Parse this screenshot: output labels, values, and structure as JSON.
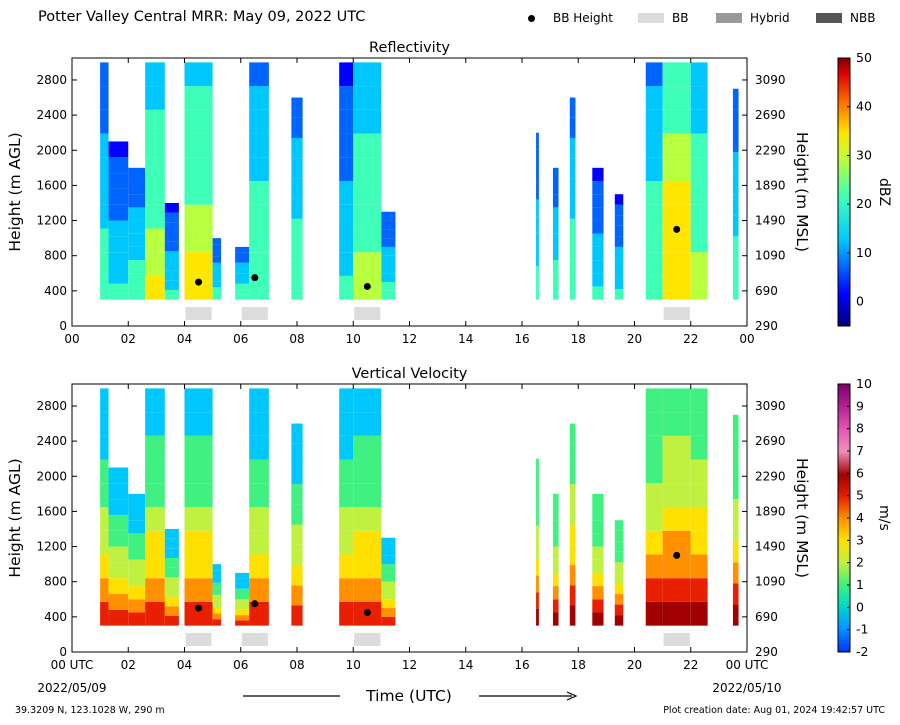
{
  "header": {
    "title": "Potter Valley Central MRR:  May 09, 2022 UTC",
    "legend": [
      {
        "label": "BB Height",
        "kind": "marker",
        "color": "#000000"
      },
      {
        "label": "BB",
        "kind": "swatch",
        "color": "#dcdcdc"
      },
      {
        "label": "Hybrid",
        "kind": "swatch",
        "color": "#999999"
      },
      {
        "label": "NBB",
        "kind": "swatch",
        "color": "#555555"
      }
    ]
  },
  "footer": {
    "location": "39.3209 N, 123.1028 W, 290 m",
    "created": "Plot creation date: Aug 01, 2024 19:42:57 UTC"
  },
  "chart_data": [
    {
      "type": "heatmap",
      "title": "Reflectivity",
      "ylabel": "Height (m AGL)",
      "ylabel_right": "Height (m MSL)",
      "xlim": [
        0,
        24
      ],
      "ylim": [
        0,
        3050
      ],
      "x_ticks": [
        "00",
        "02",
        "04",
        "06",
        "08",
        "10",
        "12",
        "14",
        "16",
        "18",
        "20",
        "22",
        "00"
      ],
      "y_ticks": [
        0,
        400,
        800,
        1200,
        1600,
        2000,
        2400,
        2800
      ],
      "y_ticks_right": [
        290,
        690,
        1090,
        1490,
        1890,
        2290,
        2690,
        3090
      ],
      "colorbar": {
        "label": "dBZ",
        "min": -5,
        "max": 50,
        "ticks": [
          0,
          10,
          20,
          30,
          40,
          50
        ]
      },
      "bb_height": [
        {
          "time": 4.5,
          "height": 500
        },
        {
          "time": 6.5,
          "height": 550
        },
        {
          "time": 10.5,
          "height": 450
        },
        {
          "time": 21.5,
          "height": 1100
        }
      ],
      "bb_class": [
        {
          "start": 4.0,
          "end": 5.0,
          "class": "BB"
        },
        {
          "start": 6.0,
          "end": 7.0,
          "class": "BB"
        },
        {
          "start": 10.0,
          "end": 11.0,
          "class": "BB"
        },
        {
          "start": 21.0,
          "end": 22.0,
          "class": "BB"
        }
      ],
      "echo_columns": [
        {
          "t0": 1.0,
          "t1": 1.3,
          "top": 3000,
          "level": 0.25
        },
        {
          "t0": 1.3,
          "t1": 2.0,
          "top": 2100,
          "level": 0.15
        },
        {
          "t0": 2.0,
          "t1": 2.6,
          "top": 1800,
          "level": 0.25
        },
        {
          "t0": 2.6,
          "t1": 3.3,
          "top": 3000,
          "level": 0.5
        },
        {
          "t0": 3.3,
          "t1": 3.8,
          "top": 1400,
          "level": 0.15
        },
        {
          "t0": 4.0,
          "t1": 5.0,
          "top": 3000,
          "level": 0.55
        },
        {
          "t0": 5.0,
          "t1": 5.3,
          "top": 1000,
          "level": 0.2
        },
        {
          "t0": 5.8,
          "t1": 6.3,
          "top": 900,
          "level": 0.25
        },
        {
          "t0": 6.3,
          "t1": 7.0,
          "top": 3000,
          "level": 0.35
        },
        {
          "t0": 7.8,
          "t1": 8.2,
          "top": 2600,
          "level": 0.3
        },
        {
          "t0": 9.5,
          "t1": 10.0,
          "top": 3000,
          "level": 0.15
        },
        {
          "t0": 10.0,
          "t1": 11.0,
          "top": 3000,
          "level": 0.45
        },
        {
          "t0": 11.0,
          "t1": 11.5,
          "top": 1300,
          "level": 0.2
        },
        {
          "t0": 16.5,
          "t1": 16.6,
          "top": 2200,
          "level": 0.2
        },
        {
          "t0": 17.1,
          "t1": 17.3,
          "top": 1800,
          "level": 0.25
        },
        {
          "t0": 17.7,
          "t1": 17.9,
          "top": 2600,
          "level": 0.3
        },
        {
          "t0": 18.5,
          "t1": 18.9,
          "top": 1800,
          "level": 0.15
        },
        {
          "t0": 19.3,
          "t1": 19.6,
          "top": 1500,
          "level": 0.15
        },
        {
          "t0": 20.4,
          "t1": 21.0,
          "top": 3000,
          "level": 0.35
        },
        {
          "t0": 21.0,
          "t1": 22.0,
          "top": 3000,
          "level": 0.7
        },
        {
          "t0": 22.0,
          "t1": 22.6,
          "top": 3000,
          "level": 0.45
        },
        {
          "t0": 23.5,
          "t1": 23.7,
          "top": 2700,
          "level": 0.25
        }
      ]
    },
    {
      "type": "heatmap",
      "title": "Vertical Velocity",
      "ylabel": "Height (m AGL)",
      "ylabel_right": "Height (m MSL)",
      "xlabel": "Time (UTC)",
      "xlim": [
        0,
        24
      ],
      "ylim": [
        0,
        3050
      ],
      "x_ticks": [
        "00 UTC",
        "02",
        "04",
        "06",
        "08",
        "10",
        "12",
        "14",
        "16",
        "18",
        "20",
        "22",
        "00 UTC"
      ],
      "x_dates": [
        "2022/05/09",
        "2022/05/10"
      ],
      "y_ticks": [
        0,
        400,
        800,
        1200,
        1600,
        2000,
        2400,
        2800
      ],
      "y_ticks_right": [
        290,
        690,
        1090,
        1490,
        1890,
        2290,
        2690,
        3090
      ],
      "colorbar": {
        "label": "m/s",
        "min": -2,
        "max": 10,
        "ticks": [
          -2,
          -1,
          0,
          1,
          2,
          3,
          4,
          5,
          6,
          7,
          8,
          9,
          10
        ]
      },
      "bb_height": [
        {
          "time": 4.5,
          "height": 500
        },
        {
          "time": 6.5,
          "height": 550
        },
        {
          "time": 10.5,
          "height": 450
        },
        {
          "time": 21.5,
          "height": 1100
        }
      ],
      "bb_class": [
        {
          "start": 4.0,
          "end": 5.0,
          "class": "BB"
        },
        {
          "start": 6.0,
          "end": 7.0,
          "class": "BB"
        },
        {
          "start": 10.0,
          "end": 11.0,
          "class": "BB"
        },
        {
          "start": 21.0,
          "end": 22.0,
          "class": "BB"
        }
      ],
      "echo_columns": [
        {
          "t0": 1.0,
          "t1": 1.3,
          "top": 3000,
          "level": 0.3
        },
        {
          "t0": 1.3,
          "t1": 2.0,
          "top": 2100,
          "level": 0.3
        },
        {
          "t0": 2.0,
          "t1": 2.6,
          "top": 1800,
          "level": 0.3
        },
        {
          "t0": 2.6,
          "t1": 3.3,
          "top": 3000,
          "level": 0.35
        },
        {
          "t0": 3.3,
          "t1": 3.8,
          "top": 1400,
          "level": 0.3
        },
        {
          "t0": 4.0,
          "t1": 5.0,
          "top": 3000,
          "level": 0.35
        },
        {
          "t0": 5.0,
          "t1": 5.3,
          "top": 1000,
          "level": 0.3
        },
        {
          "t0": 5.8,
          "t1": 6.3,
          "top": 900,
          "level": 0.3
        },
        {
          "t0": 6.3,
          "t1": 7.0,
          "top": 3000,
          "level": 0.3
        },
        {
          "t0": 7.8,
          "t1": 8.2,
          "top": 2600,
          "level": 0.3
        },
        {
          "t0": 9.5,
          "t1": 10.0,
          "top": 3000,
          "level": 0.3
        },
        {
          "t0": 10.0,
          "t1": 11.0,
          "top": 3000,
          "level": 0.35
        },
        {
          "t0": 11.0,
          "t1": 11.5,
          "top": 1300,
          "level": 0.3
        },
        {
          "t0": 16.5,
          "t1": 16.6,
          "top": 2200,
          "level": 0.45
        },
        {
          "t0": 17.1,
          "t1": 17.3,
          "top": 1800,
          "level": 0.45
        },
        {
          "t0": 17.7,
          "t1": 17.9,
          "top": 2600,
          "level": 0.55
        },
        {
          "t0": 18.5,
          "t1": 18.9,
          "top": 1800,
          "level": 0.45
        },
        {
          "t0": 19.3,
          "t1": 19.6,
          "top": 1500,
          "level": 0.45
        },
        {
          "t0": 20.4,
          "t1": 21.0,
          "top": 3000,
          "level": 0.45
        },
        {
          "t0": 21.0,
          "t1": 22.0,
          "top": 3000,
          "level": 0.6
        },
        {
          "t0": 22.0,
          "t1": 22.6,
          "top": 3000,
          "level": 0.5
        },
        {
          "t0": 23.5,
          "t1": 23.7,
          "top": 2700,
          "level": 0.45
        }
      ]
    }
  ]
}
